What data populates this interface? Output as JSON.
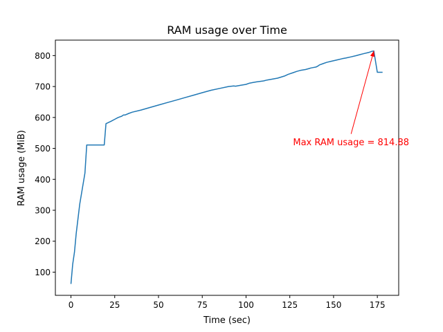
{
  "chart_data": {
    "type": "line",
    "title": "RAM usage over Time",
    "xlabel": "Time (sec)",
    "ylabel": "RAM usage (MiB)",
    "xlim": [
      -8.9,
      187.2
    ],
    "ylim": [
      25,
      850
    ],
    "xticks": [
      0,
      25,
      50,
      75,
      100,
      125,
      150,
      175
    ],
    "yticks": [
      100,
      200,
      300,
      400,
      500,
      600,
      700,
      800
    ],
    "grid": false,
    "series_color": "#1f77b4",
    "series": [
      {
        "x": [
          0,
          1,
          2,
          3,
          5,
          8,
          9,
          10,
          15,
          19,
          20,
          23,
          25,
          27,
          29,
          30,
          31,
          33,
          35,
          40,
          45,
          50,
          55,
          60,
          65,
          70,
          75,
          80,
          85,
          90,
          93,
          94,
          97,
          100,
          102,
          104,
          106,
          110,
          112,
          115,
          118,
          122,
          124,
          127,
          129,
          131,
          134,
          136,
          137,
          138,
          140,
          141,
          142,
          144,
          146,
          149,
          152,
          155,
          157,
          160,
          163,
          165,
          167,
          170,
          172,
          173,
          175,
          178
        ],
        "y": [
          62,
          125,
          165,
          225,
          320,
          420,
          511,
          511,
          511,
          511,
          580,
          588,
          594,
          600,
          604,
          608,
          608,
          613,
          617,
          624,
          632,
          640,
          648,
          656,
          664,
          672,
          680,
          688,
          694,
          700,
          702,
          701,
          704,
          707,
          711,
          713,
          715,
          718,
          721,
          724,
          727,
          734,
          739,
          745,
          749,
          752,
          755,
          758,
          760,
          761,
          763,
          766,
          770,
          774,
          778,
          782,
          786,
          790,
          792,
          796,
          800,
          803,
          806,
          810,
          814,
          814.88,
          746,
          746
        ]
      }
    ],
    "annotation": {
      "text": "Max RAM usage = 814.88",
      "color": "#ff0000",
      "point": [
        173,
        814.88
      ],
      "text_pos": [
        160,
        520
      ]
    }
  }
}
